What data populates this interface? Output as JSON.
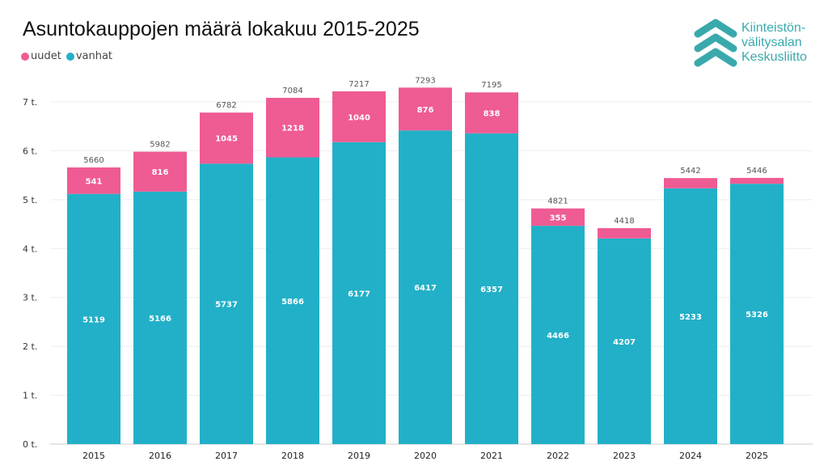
{
  "chart_data": {
    "type": "bar",
    "stacked": true,
    "title": "Asuntokauppojen määrä lokakuu 2015-2025",
    "categories": [
      "2015",
      "2016",
      "2017",
      "2018",
      "2019",
      "2020",
      "2021",
      "2022",
      "2023",
      "2024",
      "2025"
    ],
    "series": [
      {
        "name": "vanhat",
        "color": "#22b0c8",
        "values": [
          5119,
          5166,
          5737,
          5866,
          6177,
          6417,
          6357,
          4466,
          4207,
          5233,
          5326
        ]
      },
      {
        "name": "uudet",
        "color": "#ef5b93",
        "values": [
          541,
          816,
          1045,
          1218,
          1040,
          876,
          838,
          355,
          211,
          209,
          120
        ]
      }
    ],
    "totals": [
      5660,
      5982,
      6782,
      7084,
      7217,
      7293,
      7195,
      4821,
      4418,
      5442,
      5446
    ],
    "y_ticks": [
      {
        "value": 0,
        "label": "0 t."
      },
      {
        "value": 1000,
        "label": "1 t."
      },
      {
        "value": 2000,
        "label": "2 t."
      },
      {
        "value": 3000,
        "label": "3 t."
      },
      {
        "value": 4000,
        "label": "4 t."
      },
      {
        "value": 5000,
        "label": "5 t."
      },
      {
        "value": 6000,
        "label": "6 t."
      },
      {
        "value": 7000,
        "label": "7 t."
      }
    ],
    "ylim": [
      0,
      7000
    ],
    "grid": true,
    "legend": "top-left"
  },
  "logo": {
    "lines": [
      "Kiinteistön-",
      "välitysalan",
      "Keskusliitto"
    ],
    "color": "#3aa9ac"
  }
}
